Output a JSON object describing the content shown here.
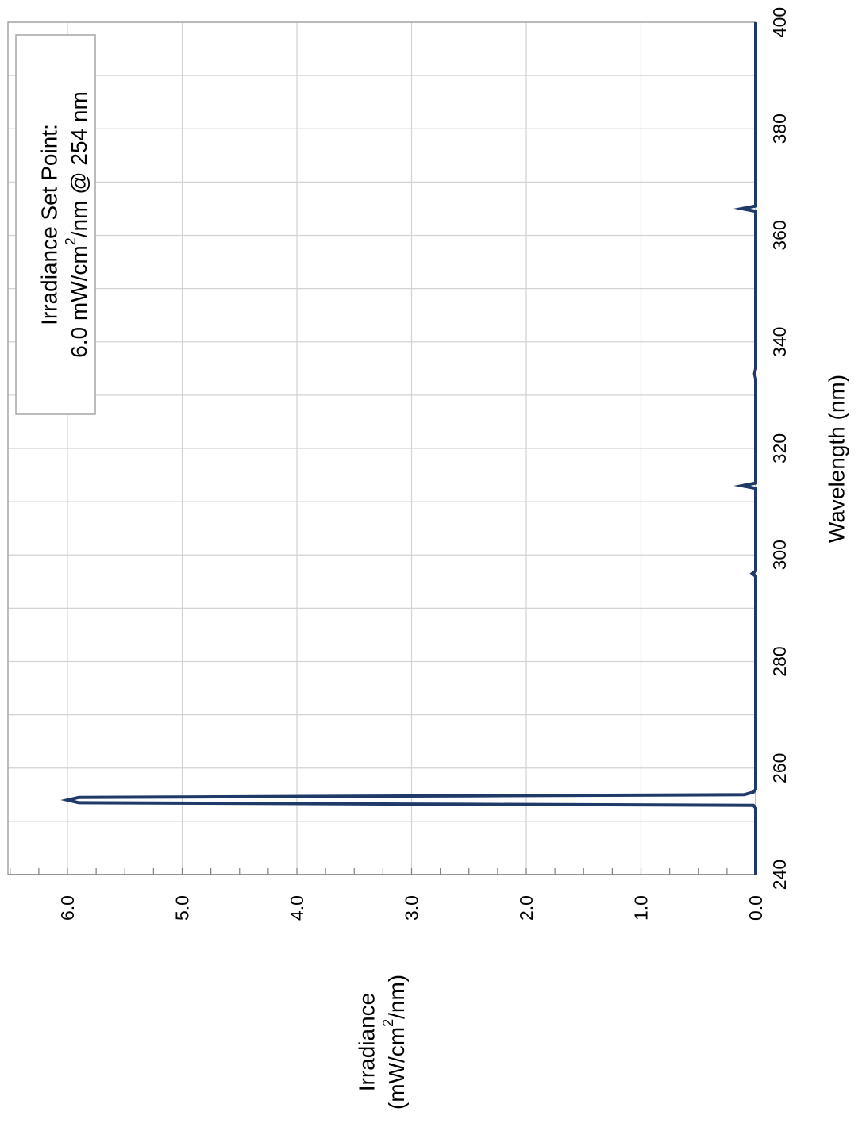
{
  "chart_data": {
    "type": "line",
    "title": "",
    "xlabel": "Wavelength (nm)",
    "ylabel": {
      "line1": "Irradiance",
      "line2_pre": "(mW/cm",
      "line2_sup": "2",
      "line2_post": "/nm)"
    },
    "xlim": [
      240,
      400
    ],
    "ylim": [
      0,
      6.5
    ],
    "x_ticks": [
      240,
      260,
      280,
      300,
      320,
      340,
      360,
      380,
      400
    ],
    "x_minor_ticks": [
      250,
      270,
      290,
      310,
      330,
      350,
      370,
      390
    ],
    "y_ticks": [
      0.0,
      1.0,
      2.0,
      3.0,
      4.0,
      5.0,
      6.0
    ],
    "y_tick_labels": [
      "0.0",
      "1.0",
      "2.0",
      "3.0",
      "4.0",
      "5.0",
      "6.0"
    ],
    "y_minor_tick_step": 0.25,
    "grid": true,
    "orientation": "rotated 90 degrees counter-clockwise",
    "annotation": {
      "line1": "Irradiance Set Point:",
      "line2_pre": "6.0 mW/cm",
      "line2_sup": "2",
      "line2_post": "/nm @ 254 nm"
    },
    "series": [
      {
        "color": "#1f3a68",
        "x": [
          240,
          252.5,
          253,
          253.2,
          253.5,
          254,
          254.5,
          254.8,
          255,
          255.5,
          256,
          260,
          280,
          296,
          296.5,
          297,
          310,
          312.5,
          313,
          313.5,
          320,
          333,
          334,
          335,
          350,
          364.5,
          365,
          365.5,
          380,
          400
        ],
        "y": [
          0,
          0,
          0.02,
          2.5,
          5.9,
          6.0,
          5.9,
          2.5,
          0.1,
          0.02,
          0,
          0,
          0,
          0,
          0.03,
          0,
          0,
          0,
          0.12,
          0,
          0,
          0,
          0.01,
          0,
          0,
          0,
          0.12,
          0,
          0,
          0
        ]
      }
    ]
  }
}
